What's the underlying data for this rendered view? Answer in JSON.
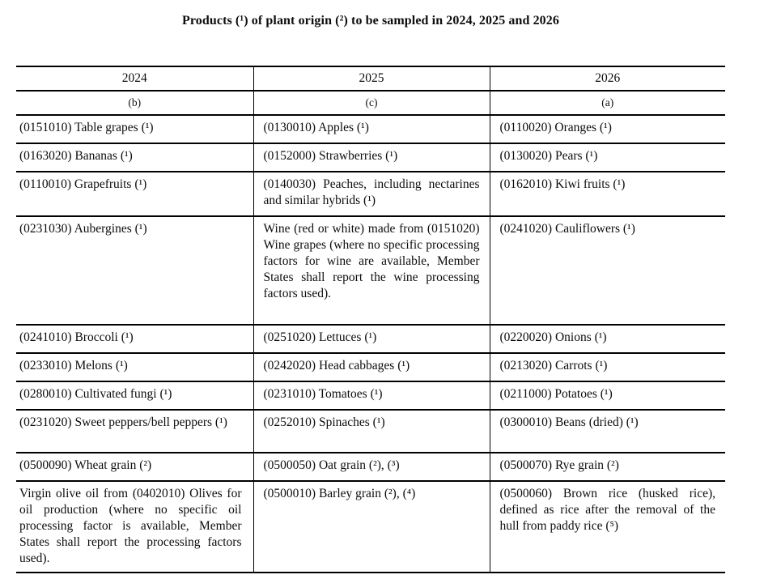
{
  "title": "Products (¹) of plant origin (²) to be sampled in 2024, 2025 and 2026",
  "table": {
    "year_headers": [
      "2024",
      "2025",
      "2026"
    ],
    "letter_headers": [
      "(b)",
      "(c)",
      "(a)"
    ],
    "rows": [
      [
        "(0151010) Table grapes (¹)",
        "(0130010) Apples (¹)",
        "(0110020) Oranges (¹)"
      ],
      [
        "(0163020) Bananas (¹)",
        "(0152000) Strawberries (¹)",
        "(0130020) Pears (¹)"
      ],
      [
        "(0110010) Grapefruits (¹)",
        "(0140030) Peaches, including nectarines and similar hybrids (¹)",
        "(0162010) Kiwi fruits (¹)"
      ],
      [
        "(0231030) Aubergines (¹)",
        "Wine (red or white) made from (0151020) Wine grapes (where no specific processing factors for wine are available, Member States shall report the wine processing factors used).",
        "(0241020) Cauliflowers (¹)"
      ],
      [
        "(0241010) Broccoli (¹)",
        "(0251020) Lettuces (¹)",
        "(0220020) Onions (¹)"
      ],
      [
        "(0233010) Melons (¹)",
        "(0242020) Head cabbages (¹)",
        "(0213020) Carrots (¹)"
      ],
      [
        "(0280010) Cultivated fungi (¹)",
        "(0231010) Tomatoes (¹)",
        "(0211000) Potatoes (¹)"
      ],
      [
        "(0231020) Sweet peppers/bell peppers (¹)",
        "(0252010) Spinaches (¹)",
        "(0300010) Beans (dried) (¹)"
      ],
      [
        "(0500090) Wheat grain (²)",
        "(0500050) Oat grain (²), (³)",
        "(0500070) Rye grain (²)"
      ],
      [
        "Virgin olive oil from (0402010) Olives for oil production (where no specific oil processing factor is available, Member States shall report the processing factors used).",
        "(0500010) Barley grain (²), (⁴)",
        "(0500060) Brown rice (husked rice), defined as rice after the removal of the hull from paddy rice (⁵)"
      ]
    ]
  }
}
